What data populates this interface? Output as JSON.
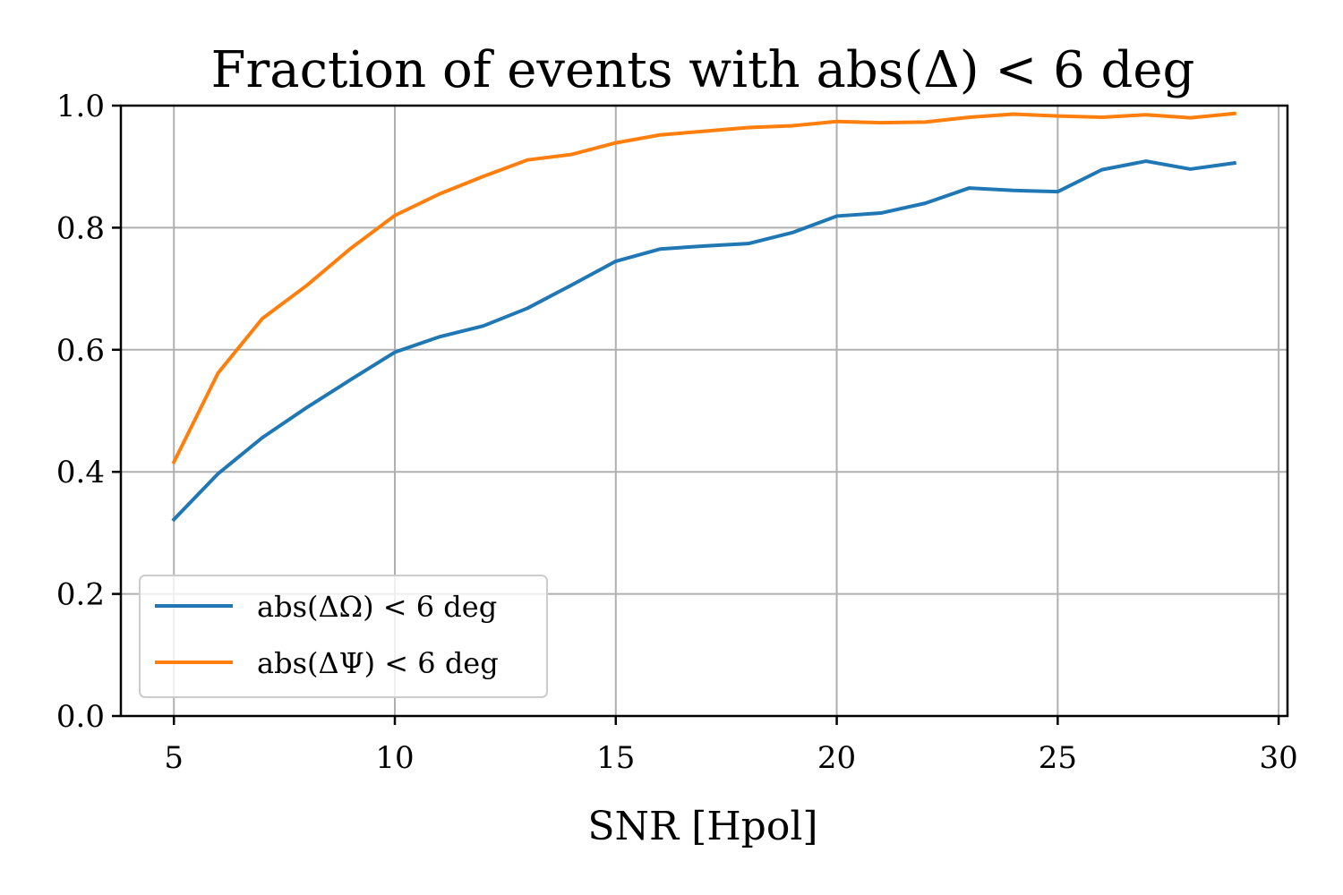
{
  "chart_data": {
    "type": "line",
    "title": "Fraction of events with abs(Δ) < 6 deg",
    "xlabel": "SNR [Hpol]",
    "ylabel": "",
    "xlim": [
      3.8,
      30.2
    ],
    "ylim": [
      0.0,
      1.0
    ],
    "xticks": [
      5,
      10,
      15,
      20,
      25,
      30
    ],
    "yticks": [
      0.0,
      0.2,
      0.4,
      0.6,
      0.8,
      1.0
    ],
    "xtick_labels": [
      "5",
      "10",
      "15",
      "20",
      "25",
      "30"
    ],
    "ytick_labels": [
      "0.0",
      "0.2",
      "0.4",
      "0.6",
      "0.8",
      "1.0"
    ],
    "grid": true,
    "legend_position": "lower-left",
    "x": [
      5,
      6,
      7,
      8,
      9,
      10,
      11,
      12,
      13,
      14,
      15,
      16,
      17,
      18,
      19,
      20,
      21,
      22,
      23,
      24,
      25,
      26,
      27,
      28,
      29
    ],
    "series": [
      {
        "name": "abs(ΔΩ) < 6 deg",
        "color": "#1f77b4",
        "values": [
          0.322,
          0.397,
          0.456,
          0.505,
          0.551,
          0.596,
          0.621,
          0.639,
          0.668,
          0.706,
          0.745,
          0.765,
          0.77,
          0.774,
          0.792,
          0.819,
          0.824,
          0.84,
          0.865,
          0.861,
          0.859,
          0.895,
          0.909,
          0.896,
          0.906
        ]
      },
      {
        "name": "abs(ΔΨ) < 6 deg",
        "color": "#ff7f0e",
        "values": [
          0.416,
          0.562,
          0.651,
          0.705,
          0.766,
          0.82,
          0.855,
          0.884,
          0.911,
          0.92,
          0.939,
          0.952,
          0.958,
          0.964,
          0.967,
          0.974,
          0.972,
          0.973,
          0.981,
          0.986,
          0.983,
          0.981,
          0.985,
          0.98,
          0.987
        ]
      }
    ]
  }
}
